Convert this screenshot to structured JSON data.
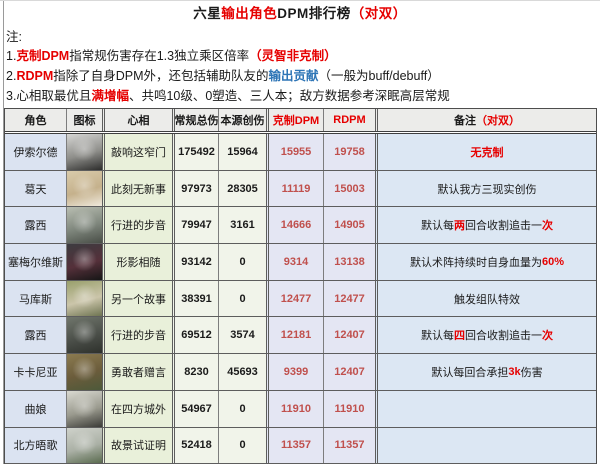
{
  "colors": {
    "accent_red": "#e60000",
    "value_red": "#c0504d",
    "accent_blue": "#2e75b6",
    "role_col_bg": "#dbe3f1",
    "psychube_col_bg": "#e9f0da",
    "num_col_bg": "#f1f4ea",
    "dpm_col_bg": "#e4e6f3",
    "note_col_bg": "#dce7f3",
    "header_bg": "#ececea"
  },
  "title_segments": [
    {
      "text": "六星",
      "bold": true
    },
    {
      "text": "输出角色",
      "bold": true,
      "color": "#e60000"
    },
    {
      "text": "DPM排行榜",
      "bold": true
    },
    {
      "text": "（对双）",
      "bold": true,
      "color": "#e60000"
    }
  ],
  "notes": {
    "label": "注:",
    "line1": [
      {
        "text": "1."
      },
      {
        "text": "克制DPM",
        "bold": true,
        "color": "#e60000"
      },
      {
        "text": "指常规伤害存在1.3独立乘区倍率"
      },
      {
        "text": "（灵智非克制）",
        "bold": true,
        "color": "#e60000"
      }
    ],
    "line2": [
      {
        "text": "2."
      },
      {
        "text": "RDPM",
        "bold": true,
        "color": "#e60000"
      },
      {
        "text": "指除了自身DPM外，还包括辅助队友的"
      },
      {
        "text": "输出贡献",
        "bold": true,
        "color": "#2e75b6"
      },
      {
        "text": "（一般为buff/debuff）"
      }
    ],
    "line3": [
      {
        "text": "3.心相取最优且"
      },
      {
        "text": "满增幅",
        "bold": true,
        "color": "#e60000"
      },
      {
        "text": "、共鸣10级、0塑造、三人本；敌方数据参考深眠高层常规"
      }
    ]
  },
  "table": {
    "headers": {
      "role": "角色",
      "icon": "图标",
      "psychube": "心相",
      "normal_total": "常规总伤",
      "source_dmg": "本源创伤",
      "counter_dpm": "克制DPM",
      "rdpm": "RDPM",
      "remark_segments": [
        {
          "text": "备注"
        },
        {
          "text": "（对双）",
          "bold": true,
          "color": "#e60000"
        }
      ]
    },
    "rows": [
      {
        "name": "伊索尔德",
        "psychube": "敲响这窄门",
        "normal_total": "175492",
        "source_dmg": "15964",
        "counter_dpm": "15955",
        "rdpm": "19758",
        "note_segments": [
          {
            "text": "无克制",
            "bold": true,
            "color": "#e60000"
          }
        ],
        "portrait": {
          "top": "#d6d6d4",
          "mid": "#8e8e8a",
          "bottom": "#2d2d2c"
        }
      },
      {
        "name": "葛天",
        "psychube": "此刻无新事",
        "normal_total": "97973",
        "source_dmg": "28305",
        "counter_dpm": "11119",
        "rdpm": "15003",
        "note_segments": [
          {
            "text": "默认我方三现实创伤"
          }
        ],
        "portrait": {
          "top": "#d9cbab",
          "mid": "#c5b18c",
          "bottom": "#efe9dc"
        }
      },
      {
        "name": "露西",
        "psychube": "行进的步音",
        "normal_total": "79947",
        "source_dmg": "3161",
        "counter_dpm": "14666",
        "rdpm": "14905",
        "note_segments": [
          {
            "text": "默认每"
          },
          {
            "text": "两",
            "bold": true,
            "color": "#e60000"
          },
          {
            "text": "回合收割追击一"
          },
          {
            "text": "次",
            "bold": true,
            "color": "#e60000"
          }
        ],
        "portrait": {
          "top": "#b9beb2",
          "mid": "#7e867c",
          "bottom": "#494e47"
        }
      },
      {
        "name": "塞梅尔维斯",
        "psychube": "形影相随",
        "normal_total": "93142",
        "source_dmg": "0",
        "counter_dpm": "9314",
        "rdpm": "13138",
        "note_segments": [
          {
            "text": "默认术阵持续时自身血量为"
          },
          {
            "text": "60%",
            "bold": true,
            "color": "#e60000"
          }
        ],
        "portrait": {
          "top": "#3c3c40",
          "mid": "#55303a",
          "bottom": "#161616"
        }
      },
      {
        "name": "马库斯",
        "psychube": "另一个故事",
        "normal_total": "38391",
        "source_dmg": "0",
        "counter_dpm": "12477",
        "rdpm": "12477",
        "note_segments": [
          {
            "text": "触发组队特效"
          }
        ],
        "portrait": {
          "top": "#99a06c",
          "mid": "#cbc5aa",
          "bottom": "#6e7451"
        }
      },
      {
        "name": "露西",
        "psychube": "行进的步音",
        "normal_total": "69512",
        "source_dmg": "3574",
        "counter_dpm": "12181",
        "rdpm": "12407",
        "note_segments": [
          {
            "text": "默认每"
          },
          {
            "text": "四",
            "bold": true,
            "color": "#e60000"
          },
          {
            "text": "回合收割追击一"
          },
          {
            "text": "次",
            "bold": true,
            "color": "#e60000"
          }
        ],
        "portrait": {
          "top": "#70766c",
          "mid": "#4b4f49",
          "bottom": "#2e312c"
        }
      },
      {
        "name": "卡卡尼亚",
        "psychube": "勇敢者赠言",
        "normal_total": "8230",
        "source_dmg": "45693",
        "counter_dpm": "9399",
        "rdpm": "12407",
        "note_segments": [
          {
            "text": "默认每回合承担"
          },
          {
            "text": "3k",
            "bold": true,
            "color": "#e60000"
          },
          {
            "text": "伤害"
          }
        ],
        "portrait": {
          "top": "#8b7b50",
          "mid": "#6b5c3b",
          "bottom": "#4d593a"
        }
      },
      {
        "name": "曲娘",
        "psychube": "在四方城外",
        "normal_total": "54967",
        "source_dmg": "0",
        "counter_dpm": "11910",
        "rdpm": "11910",
        "note_segments": [],
        "portrait": {
          "top": "#d9d9d1",
          "mid": "#9a9a8e",
          "bottom": "#3b3b37"
        }
      },
      {
        "name": "北方晤歌",
        "psychube": "故景试证明",
        "normal_total": "52418",
        "source_dmg": "0",
        "counter_dpm": "11357",
        "rdpm": "11357",
        "note_segments": [],
        "portrait": {
          "top": "#cfd2cb",
          "mid": "#aab0a5",
          "bottom": "#5a6b4f"
        }
      }
    ]
  }
}
